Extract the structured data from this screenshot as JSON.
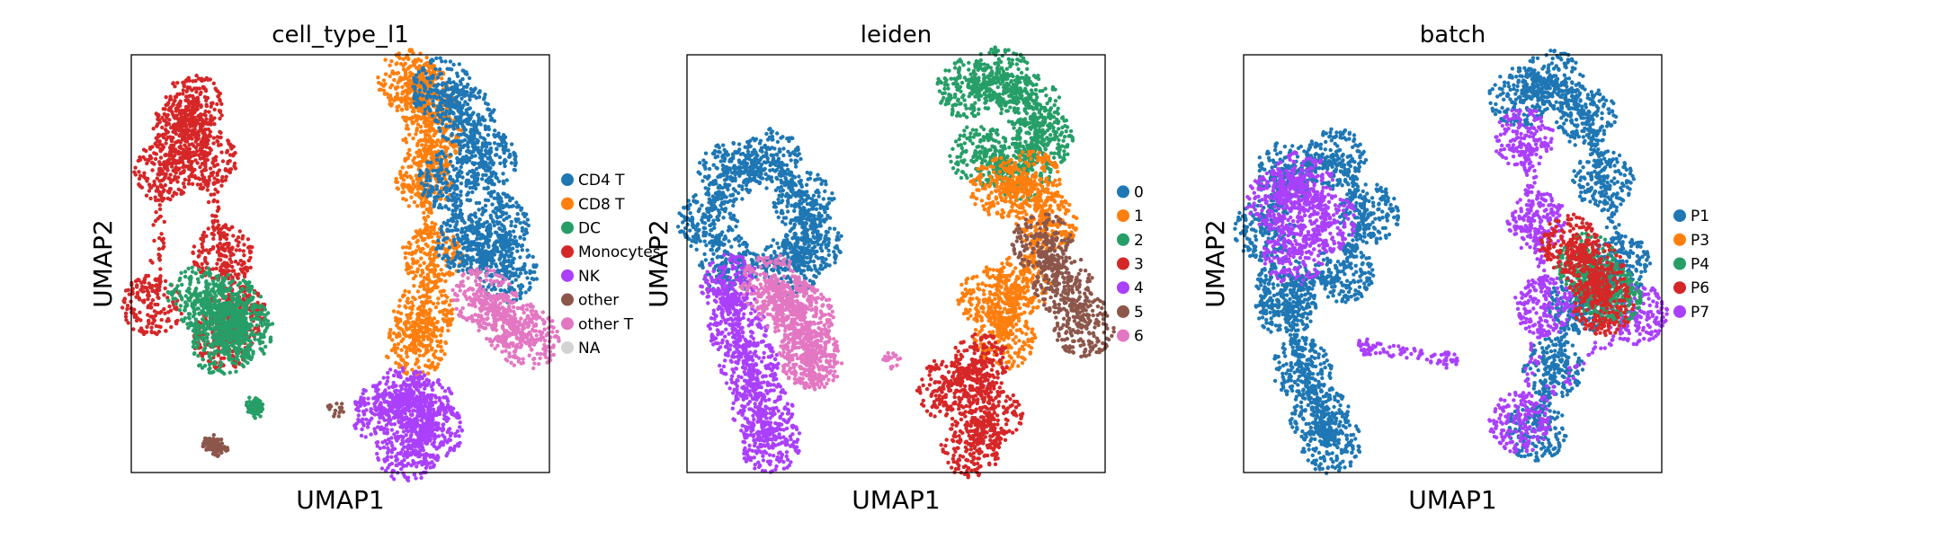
{
  "chart_data": [
    {
      "type": "scatter",
      "title": "cell_type_l1",
      "xlabel": "UMAP1",
      "ylabel": "UMAP2",
      "grid": false,
      "legend_position": "right",
      "legend": [
        {
          "label": "CD4 T",
          "color": "#1f77b4"
        },
        {
          "label": "CD8 T",
          "color": "#ff7f0e"
        },
        {
          "label": "DC",
          "color": "#279e68"
        },
        {
          "label": "Monocytes",
          "color": "#d62728"
        },
        {
          "label": "NK",
          "color": "#aa40fc"
        },
        {
          "label": "other",
          "color": "#8c564b"
        },
        {
          "label": "other T",
          "color": "#e377c2"
        },
        {
          "label": "NA",
          "color": "#d3d3d3"
        }
      ],
      "regions": [
        {
          "label": "Monocytes",
          "points": [
            [
              0.05,
              0.6
            ],
            [
              0.08,
              0.28
            ],
            [
              0.12,
              0.18
            ],
            [
              0.15,
              0.12
            ],
            [
              0.18,
              0.25
            ],
            [
              0.22,
              0.48
            ],
            [
              0.25,
              0.62
            ],
            [
              0.22,
              0.68
            ]
          ]
        },
        {
          "label": "DC",
          "points": [
            [
              0.16,
              0.58
            ],
            [
              0.2,
              0.62
            ],
            [
              0.24,
              0.6
            ],
            [
              0.27,
              0.66
            ],
            [
              0.22,
              0.7
            ]
          ]
        },
        {
          "label": "DC",
          "points": [
            [
              0.29,
              0.84
            ],
            [
              0.3,
              0.85
            ]
          ]
        },
        {
          "label": "other",
          "points": [
            [
              0.19,
              0.93
            ],
            [
              0.21,
              0.94
            ]
          ]
        },
        {
          "label": "other",
          "points": [
            [
              0.49,
              0.85
            ]
          ]
        },
        {
          "label": "CD8 T",
          "points": [
            [
              0.66,
              0.06
            ],
            [
              0.7,
              0.1
            ],
            [
              0.72,
              0.2
            ],
            [
              0.7,
              0.3
            ],
            [
              0.72,
              0.48
            ],
            [
              0.7,
              0.62
            ],
            [
              0.68,
              0.7
            ]
          ]
        },
        {
          "label": "CD4 T",
          "points": [
            [
              0.74,
              0.08
            ],
            [
              0.8,
              0.15
            ],
            [
              0.85,
              0.25
            ],
            [
              0.88,
              0.4
            ],
            [
              0.9,
              0.52
            ],
            [
              0.8,
              0.45
            ],
            [
              0.76,
              0.3
            ]
          ]
        },
        {
          "label": "other T",
          "points": [
            [
              0.84,
              0.58
            ],
            [
              0.9,
              0.64
            ],
            [
              0.95,
              0.68
            ]
          ]
        },
        {
          "label": "NK",
          "points": [
            [
              0.6,
              0.86
            ],
            [
              0.65,
              0.82
            ],
            [
              0.7,
              0.84
            ],
            [
              0.72,
              0.9
            ],
            [
              0.66,
              0.95
            ]
          ]
        }
      ]
    },
    {
      "type": "scatter",
      "title": "leiden",
      "xlabel": "UMAP1",
      "ylabel": "UMAP2",
      "grid": false,
      "legend_position": "right",
      "legend": [
        {
          "label": "0",
          "color": "#1f77b4"
        },
        {
          "label": "1",
          "color": "#ff7f0e"
        },
        {
          "label": "2",
          "color": "#279e68"
        },
        {
          "label": "3",
          "color": "#d62728"
        },
        {
          "label": "4",
          "color": "#aa40fc"
        },
        {
          "label": "5",
          "color": "#8c564b"
        },
        {
          "label": "6",
          "color": "#e377c2"
        }
      ],
      "regions": [
        {
          "label": "0",
          "points": [
            [
              0.05,
              0.4
            ],
            [
              0.1,
              0.28
            ],
            [
              0.2,
              0.25
            ],
            [
              0.28,
              0.35
            ],
            [
              0.3,
              0.45
            ],
            [
              0.25,
              0.5
            ],
            [
              0.1,
              0.5
            ]
          ]
        },
        {
          "label": "4",
          "points": [
            [
              0.1,
              0.55
            ],
            [
              0.12,
              0.65
            ],
            [
              0.15,
              0.75
            ],
            [
              0.18,
              0.85
            ],
            [
              0.2,
              0.93
            ]
          ]
        },
        {
          "label": "6",
          "points": [
            [
              0.2,
              0.55
            ],
            [
              0.24,
              0.6
            ],
            [
              0.28,
              0.62
            ],
            [
              0.29,
              0.72
            ],
            [
              0.3,
              0.73
            ]
          ]
        },
        {
          "label": "6",
          "points": [
            [
              0.49,
              0.73
            ]
          ]
        },
        {
          "label": "2",
          "points": [
            [
              0.67,
              0.08
            ],
            [
              0.75,
              0.05
            ],
            [
              0.82,
              0.12
            ],
            [
              0.85,
              0.2
            ],
            [
              0.8,
              0.28
            ],
            [
              0.7,
              0.24
            ]
          ]
        },
        {
          "label": "1",
          "points": [
            [
              0.75,
              0.32
            ],
            [
              0.82,
              0.3
            ],
            [
              0.86,
              0.4
            ],
            [
              0.8,
              0.55
            ],
            [
              0.76,
              0.68
            ],
            [
              0.72,
              0.58
            ]
          ]
        },
        {
          "label": "5",
          "points": [
            [
              0.85,
              0.45
            ],
            [
              0.9,
              0.55
            ],
            [
              0.95,
              0.65
            ]
          ]
        },
        {
          "label": "3",
          "points": [
            [
              0.62,
              0.8
            ],
            [
              0.7,
              0.74
            ],
            [
              0.73,
              0.86
            ],
            [
              0.68,
              0.94
            ]
          ]
        }
      ]
    },
    {
      "type": "scatter",
      "title": "batch",
      "xlabel": "UMAP1",
      "ylabel": "UMAP2",
      "grid": false,
      "legend_position": "right",
      "legend": [
        {
          "label": "P1",
          "color": "#1f77b4"
        },
        {
          "label": "P3",
          "color": "#ff7f0e"
        },
        {
          "label": "P4",
          "color": "#279e68"
        },
        {
          "label": "P6",
          "color": "#d62728"
        },
        {
          "label": "P7",
          "color": "#aa40fc"
        }
      ],
      "regions": [
        {
          "label": "P1",
          "points": [
            [
              0.05,
              0.42
            ],
            [
              0.1,
              0.28
            ],
            [
              0.22,
              0.25
            ],
            [
              0.3,
              0.38
            ],
            [
              0.24,
              0.52
            ],
            [
              0.1,
              0.56
            ]
          ]
        },
        {
          "label": "P7",
          "points": [
            [
              0.08,
              0.35
            ],
            [
              0.14,
              0.3
            ],
            [
              0.2,
              0.4
            ],
            [
              0.12,
              0.48
            ]
          ]
        },
        {
          "label": "P1",
          "points": [
            [
              0.1,
              0.6
            ],
            [
              0.14,
              0.75
            ],
            [
              0.18,
              0.86
            ],
            [
              0.21,
              0.93
            ]
          ]
        },
        {
          "label": "P7",
          "points": [
            [
              0.29,
              0.7
            ],
            [
              0.49,
              0.73
            ]
          ]
        },
        {
          "label": "P1",
          "points": [
            [
              0.66,
              0.1
            ],
            [
              0.74,
              0.06
            ],
            [
              0.82,
              0.15
            ],
            [
              0.86,
              0.3
            ],
            [
              0.9,
              0.5
            ],
            [
              0.8,
              0.6
            ],
            [
              0.74,
              0.75
            ],
            [
              0.7,
              0.9
            ]
          ]
        },
        {
          "label": "P7",
          "points": [
            [
              0.67,
              0.2
            ],
            [
              0.7,
              0.4
            ],
            [
              0.72,
              0.6
            ],
            [
              0.66,
              0.88
            ],
            [
              0.94,
              0.62
            ]
          ]
        },
        {
          "label": "P4",
          "points": [
            [
              0.82,
              0.5
            ],
            [
              0.86,
              0.56
            ],
            [
              0.88,
              0.58
            ]
          ]
        },
        {
          "label": "P6",
          "points": [
            [
              0.78,
              0.45
            ],
            [
              0.84,
              0.52
            ],
            [
              0.86,
              0.6
            ]
          ]
        }
      ]
    }
  ]
}
